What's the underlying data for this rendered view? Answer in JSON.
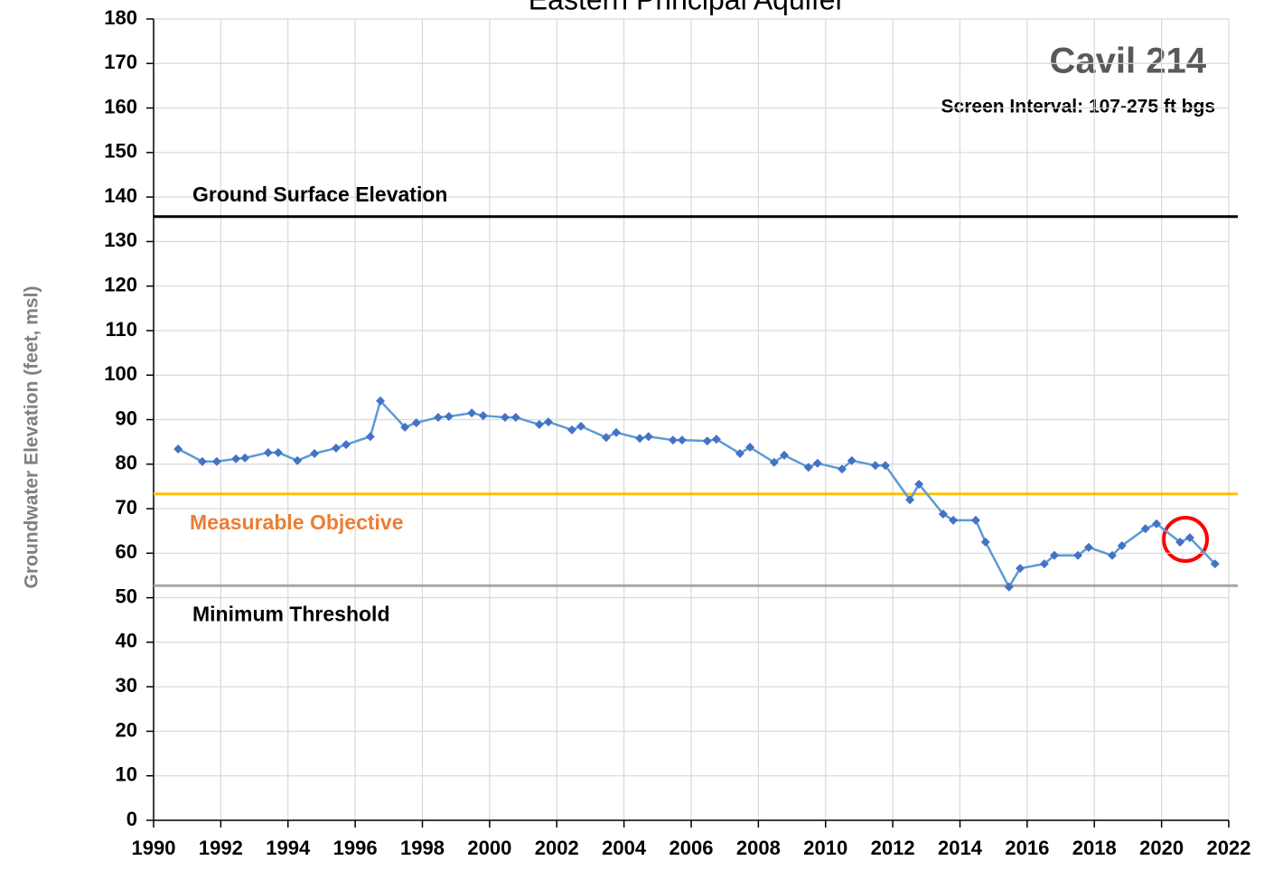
{
  "chart_data": {
    "type": "line",
    "title": "Eastern Principal Aquifer",
    "well_name": "Cavil 214",
    "subtitle": "Screen Interval: 107-275 ft bgs",
    "y_label": "Groundwater Elevation (feet, msl)",
    "xlim": [
      1990,
      2022
    ],
    "xticks": [
      1990,
      1992,
      1994,
      1996,
      1998,
      2000,
      2002,
      2004,
      2006,
      2008,
      2010,
      2012,
      2014,
      2016,
      2018,
      2020,
      2022
    ],
    "ylim": [
      0,
      180
    ],
    "yticks": [
      0,
      10,
      20,
      30,
      40,
      50,
      60,
      70,
      80,
      90,
      100,
      110,
      120,
      130,
      140,
      150,
      160,
      170,
      180
    ],
    "grid": true,
    "series": [
      {
        "line_color": "#5b9bd5",
        "color": "#4472c4",
        "x": [
          1990.73,
          1991.45,
          1991.88,
          1992.45,
          1992.72,
          1993.41,
          1993.71,
          1994.28,
          1994.79,
          1995.43,
          1995.73,
          1996.45,
          1996.75,
          1997.48,
          1997.82,
          1998.47,
          1998.79,
          1999.47,
          1999.81,
          2000.46,
          2000.78,
          2001.48,
          2001.75,
          2002.45,
          2002.72,
          2003.47,
          2003.77,
          2004.47,
          2004.73,
          2005.46,
          2005.73,
          2006.48,
          2006.75,
          2007.45,
          2007.75,
          2008.47,
          2008.77,
          2009.49,
          2009.76,
          2010.49,
          2010.78,
          2011.48,
          2011.78,
          2012.51,
          2012.78,
          2013.5,
          2013.8,
          2014.47,
          2014.76,
          2015.46,
          2015.79,
          2016.51,
          2016.81,
          2017.51,
          2017.83,
          2018.53,
          2018.82,
          2019.52,
          2019.85,
          2020.55,
          2020.84,
          2021.59
        ],
        "values": [
          83.4,
          80.6,
          80.6,
          81.2,
          81.4,
          82.6,
          82.6,
          80.8,
          82.4,
          83.6,
          84.4,
          86.2,
          94.2,
          88.3,
          89.3,
          90.5,
          90.7,
          91.5,
          90.9,
          90.5,
          90.5,
          88.9,
          89.5,
          87.7,
          88.5,
          86.0,
          87.1,
          85.8,
          86.2,
          85.4,
          85.4,
          85.2,
          85.6,
          82.4,
          83.8,
          80.4,
          82.0,
          79.3,
          80.2,
          78.9,
          80.8,
          79.7,
          79.7,
          72.0,
          75.5,
          68.8,
          67.4,
          67.4,
          62.5,
          52.4,
          56.6,
          57.6,
          59.5,
          59.5,
          61.3,
          59.5,
          61.7,
          65.5,
          66.6,
          62.5,
          63.5,
          57.6
        ]
      }
    ],
    "reference_lines": [
      {
        "label": "Ground Surface Elevation",
        "value": 135.6,
        "color": "#000000",
        "label_color": "#000000"
      },
      {
        "label": "Measurable  Objective",
        "value": 73.3,
        "color": "#ffc000",
        "label_color": "#ed7d31"
      },
      {
        "label": "Minimum Threshold",
        "value": 52.7,
        "color": "#a6a6a6",
        "label_color": "#000000"
      }
    ]
  }
}
